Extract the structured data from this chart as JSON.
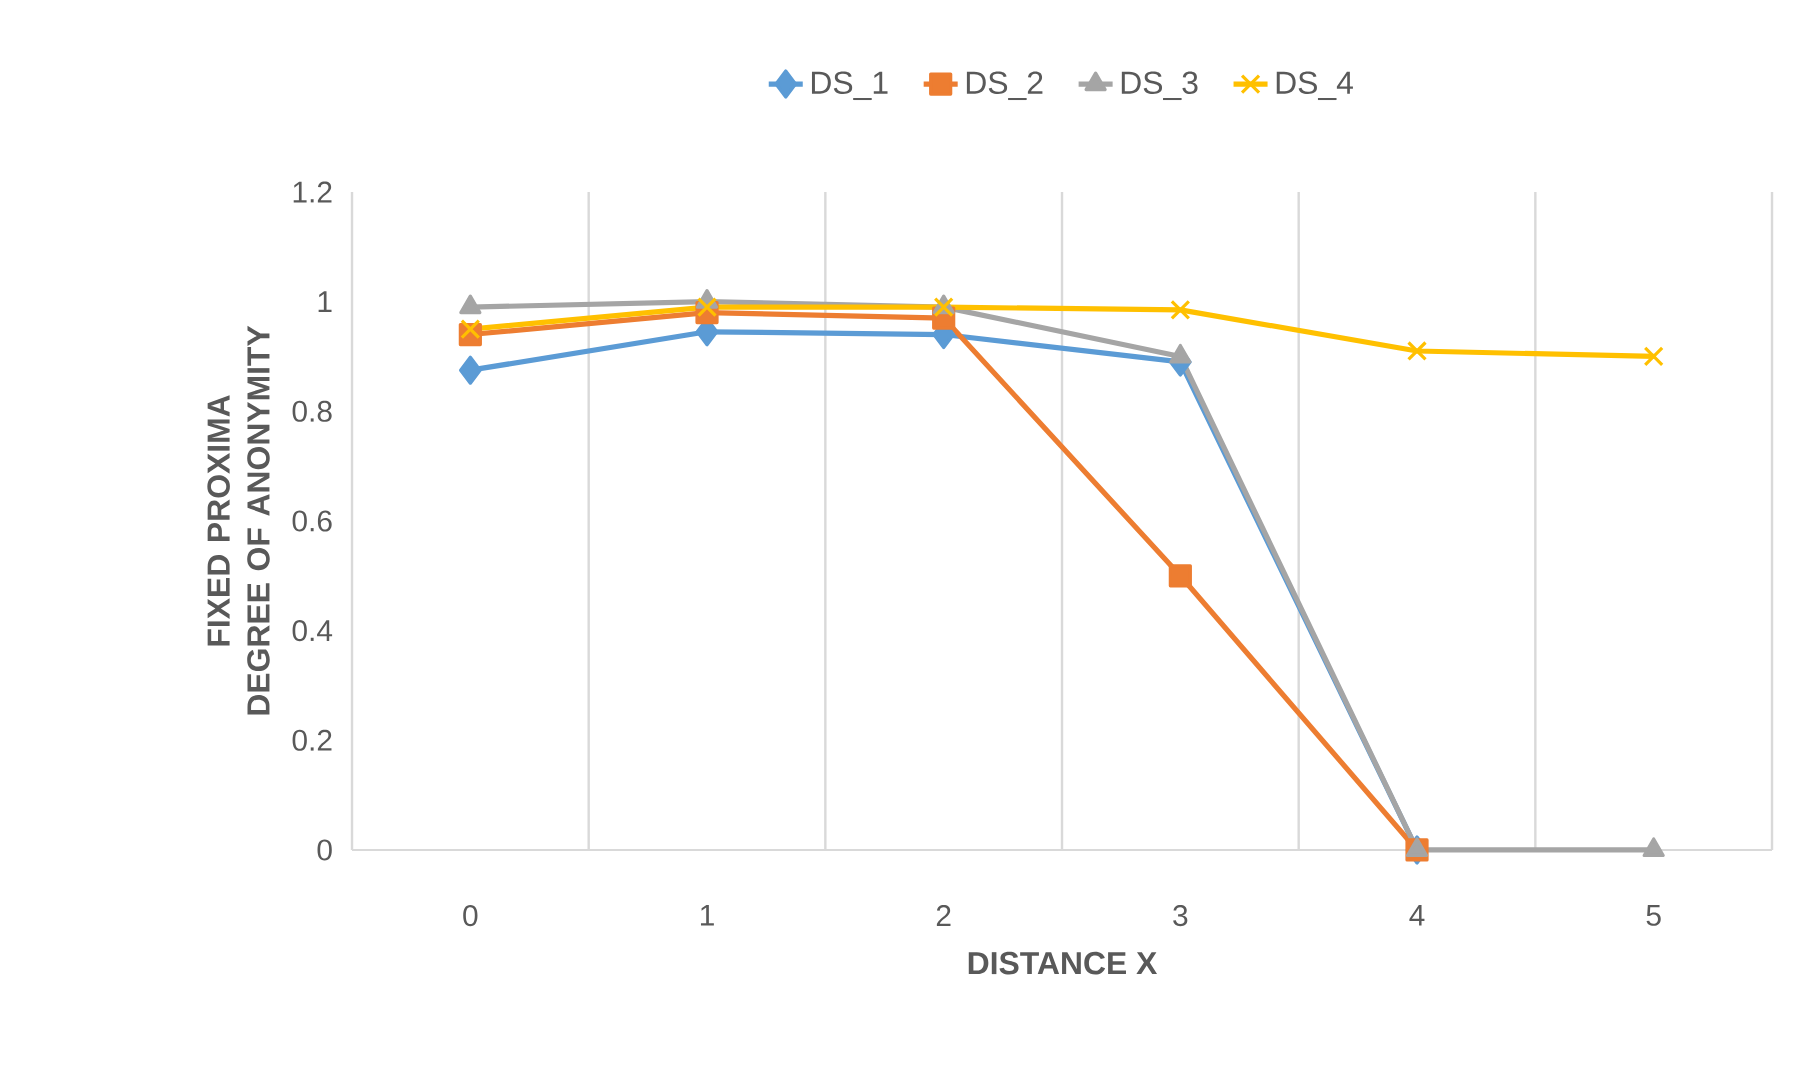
{
  "chart_data": {
    "type": "line",
    "xlabel": "DISTANCE X",
    "ylabel": "FIXED PROXIMA DEGREE OF ANONYMITY",
    "categories": [
      "0",
      "1",
      "2",
      "3",
      "4",
      "5"
    ],
    "series": [
      {
        "name": "DS_1",
        "color": "#5b9bd5",
        "marker": "diamond",
        "values": [
          0.875,
          0.945,
          0.94,
          0.89,
          0,
          null
        ]
      },
      {
        "name": "DS_2",
        "color": "#ed7d31",
        "marker": "square",
        "values": [
          0.94,
          0.98,
          0.97,
          0.5,
          0,
          null
        ]
      },
      {
        "name": "DS_3",
        "color": "#a5a5a5",
        "marker": "triangle",
        "values": [
          0.99,
          1.0,
          0.99,
          0.9,
          0,
          0
        ]
      },
      {
        "name": "DS_4",
        "color": "#ffc000",
        "marker": "cross",
        "values": [
          0.95,
          0.99,
          0.99,
          0.985,
          0.91,
          0.9
        ]
      }
    ],
    "ylim": [
      0,
      1.2
    ],
    "yticks": [
      0,
      0.2,
      0.4,
      0.6,
      0.8,
      1,
      1.2
    ],
    "grid": "x",
    "legend": "top",
    "line_style": "solid"
  }
}
